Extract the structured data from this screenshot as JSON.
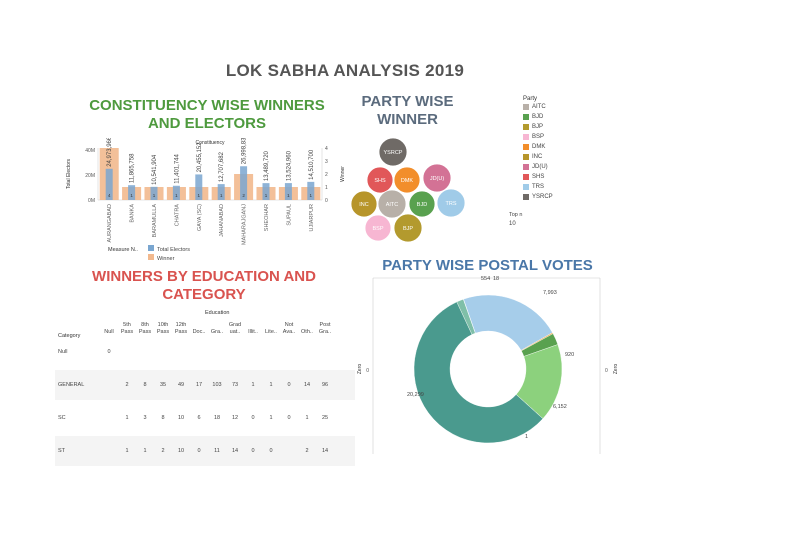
{
  "titles": {
    "main": "LOK SABHA ANALYSIS 2019",
    "constituency": "CONSTITUENCY WISE WINNERS AND ELECTORS",
    "party_wise": "PARTY WISE WINNER",
    "education": "WINNERS BY EDUCATION AND CATEGORY",
    "postal": "PARTY WISE POSTAL VOTES"
  },
  "colors": {
    "accent_green": "#4e9a3e",
    "accent_red": "#d9534f",
    "accent_blue": "#4a77a8",
    "electors_bar": "#7aa6d0",
    "winner_bar": "#f2b98e"
  },
  "chart_data": [
    {
      "type": "bar",
      "header": "Constituency",
      "ylabel_left": "Total Electors",
      "ylabel_right": "Winner",
      "left_ticks": [
        "40M",
        "20M",
        "0M"
      ],
      "right_ticks": [
        "4",
        "3",
        "2",
        "1",
        "0"
      ],
      "ylim_left": [
        0,
        40000000
      ],
      "ylim_right": [
        0,
        4
      ],
      "categories": [
        "AURANGABAD",
        "BANKA",
        "BARAMULLA",
        "CHATRA",
        "GAYA (SC)",
        "JAHANABAD",
        "MAHARAJGANJ",
        "SHEOHAR",
        "SUPAUL",
        "UJIARPUR"
      ],
      "series": [
        {
          "name": "Total Electors",
          "values": [
            24973966,
            11865758,
            10541904,
            11401744,
            20455152,
            12707682,
            26998832,
            13489720,
            13524960,
            14510700
          ],
          "labels": [
            "24,973,966",
            "11,865,758",
            "10,541,904",
            "11,401,744",
            "20,455,152",
            "12,707,682",
            "26,998,832",
            "13,489,720",
            "13,524,960",
            "14,510,700"
          ]
        },
        {
          "name": "Winner",
          "values": [
            4,
            1,
            1,
            1,
            1,
            1,
            2,
            1,
            1,
            1
          ],
          "labels": [
            "4",
            "1",
            "1",
            "1",
            "1",
            "1",
            "2",
            "1",
            "1",
            "1"
          ]
        }
      ],
      "legend_title": "Measure N..",
      "legend": [
        "Total Electors",
        "Winner"
      ]
    },
    {
      "type": "scatter",
      "subtype": "packed-bubbles",
      "legend_title": "Party",
      "legend": [
        {
          "name": "AITC",
          "color": "#b8b0a8"
        },
        {
          "name": "BJD",
          "color": "#59a14f"
        },
        {
          "name": "BJP",
          "color": "#b39a2e"
        },
        {
          "name": "BSP",
          "color": "#f7b6d2"
        },
        {
          "name": "DMK",
          "color": "#f28e2b"
        },
        {
          "name": "INC",
          "color": "#b7952a"
        },
        {
          "name": "JD(U)",
          "color": "#d37295"
        },
        {
          "name": "SHS",
          "color": "#e15759"
        },
        {
          "name": "TRS",
          "color": "#a0cbe8"
        },
        {
          "name": "YSRCP",
          "color": "#6f6a66"
        }
      ],
      "bubbles": [
        "YSRCP",
        "SHS",
        "DMK",
        "JD(U)",
        "INC",
        "AITC",
        "BJD",
        "TRS",
        "BSP",
        "BJP"
      ],
      "top_n_label": "Top n",
      "top_n_value": "10"
    },
    {
      "type": "table",
      "header": "Education",
      "row_header": "Category",
      "columns": [
        "Null",
        "5th Pass",
        "8th Pass",
        "10th Pass",
        "12th Pass",
        "Doc..",
        "Gra..",
        "Grad uat..",
        "Illit..",
        "Lite..",
        "Not Ava..",
        "Oth..",
        "Post Gra.."
      ],
      "column_lines": [
        [
          "Null"
        ],
        [
          "5th",
          "Pass"
        ],
        [
          "8th",
          "Pass"
        ],
        [
          "10th",
          "Pass"
        ],
        [
          "12th",
          "Pass"
        ],
        [
          "Doc.."
        ],
        [
          "Gra.."
        ],
        [
          "Grad",
          "uat.."
        ],
        [
          "Illit.."
        ],
        [
          "Lite.."
        ],
        [
          "Not",
          "Ava.."
        ],
        [
          "Oth.."
        ],
        [
          "Post",
          "Gra.."
        ]
      ],
      "rows": [
        {
          "category": "Null",
          "values": [
            "0",
            "",
            "",
            "",
            "",
            "",
            "",
            "",
            "",
            "",
            "",
            "",
            ""
          ]
        },
        {
          "category": "GENERAL",
          "values": [
            "",
            "2",
            "8",
            "35",
            "49",
            "17",
            "103",
            "73",
            "1",
            "1",
            "0",
            "14",
            "96"
          ]
        },
        {
          "category": "SC",
          "values": [
            "",
            "1",
            "3",
            "8",
            "10",
            "6",
            "18",
            "12",
            "0",
            "1",
            "0",
            "1",
            "25"
          ]
        },
        {
          "category": "ST",
          "values": [
            "",
            "1",
            "1",
            "2",
            "10",
            "0",
            "11",
            "14",
            "0",
            "0",
            "",
            "2",
            "14"
          ]
        }
      ]
    },
    {
      "type": "pie",
      "subtype": "donut",
      "axis_left": "Zero",
      "axis_right": "Zero",
      "axis_left_tick": "0",
      "axis_right_tick": "0",
      "slices": [
        {
          "value": 554,
          "label": "554",
          "color": "#7fbfa8"
        },
        {
          "value": 18,
          "label": "18",
          "color": "#9bd0c0"
        },
        {
          "value": 7993,
          "label": "7,993",
          "color": "#a6cdea"
        },
        {
          "value": 90,
          "label": "",
          "color": "#f2a03d"
        },
        {
          "value": 920,
          "label": "920",
          "color": "#59a14f"
        },
        {
          "value": 6152,
          "label": "6,152",
          "color": "#8cd17d"
        },
        {
          "value": 1,
          "label": "1",
          "color": "#b7952a"
        },
        {
          "value": 20299,
          "label": "20,299",
          "color": "#4a9a8e"
        }
      ]
    }
  ]
}
